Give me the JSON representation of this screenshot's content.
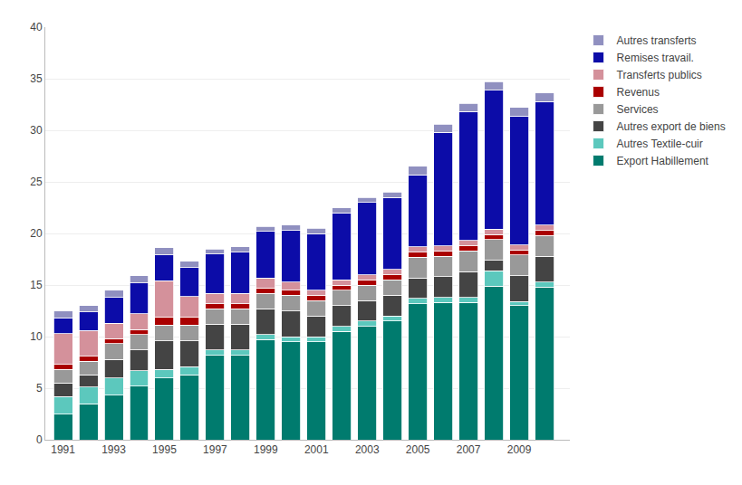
{
  "chart_data": {
    "type": "bar",
    "stacked": true,
    "x": [
      1991,
      1992,
      1993,
      1994,
      1995,
      1996,
      1997,
      1998,
      1999,
      2000,
      2001,
      2002,
      2003,
      2004,
      2005,
      2006,
      2007,
      2008,
      2009,
      2010
    ],
    "series": [
      {
        "name": "Export Habillement",
        "color": "#007B6E",
        "values": [
          2.5,
          3.5,
          4.3,
          5.2,
          6.0,
          6.3,
          8.2,
          8.2,
          9.7,
          9.5,
          9.5,
          10.5,
          11.0,
          11.5,
          13.2,
          13.3,
          13.3,
          14.9,
          13.0,
          14.8
        ]
      },
      {
        "name": "Autres Textile-cuir",
        "color": "#5CC8BD",
        "values": [
          1.7,
          1.6,
          1.7,
          1.5,
          0.8,
          0.8,
          0.5,
          0.5,
          0.5,
          0.5,
          0.5,
          0.5,
          0.5,
          0.5,
          0.5,
          0.5,
          0.5,
          1.5,
          0.4,
          0.5
        ]
      },
      {
        "name": "Autres export de biens",
        "color": "#444444",
        "values": [
          1.3,
          1.2,
          1.8,
          2.0,
          2.8,
          2.5,
          2.5,
          2.5,
          2.5,
          2.5,
          2.0,
          2.0,
          2.0,
          2.0,
          2.0,
          2.0,
          2.5,
          1.0,
          2.5,
          2.5
        ]
      },
      {
        "name": "Services",
        "color": "#999999",
        "values": [
          1.3,
          1.3,
          1.5,
          1.5,
          1.5,
          1.5,
          1.5,
          1.5,
          1.5,
          1.5,
          1.5,
          1.5,
          1.5,
          1.5,
          2.0,
          2.0,
          2.0,
          2.0,
          2.0,
          2.0
        ]
      },
      {
        "name": "Revenus",
        "color": "#AA0000",
        "values": [
          0.5,
          0.5,
          0.5,
          0.5,
          0.8,
          0.8,
          0.5,
          0.5,
          0.5,
          0.5,
          0.5,
          0.5,
          0.5,
          0.5,
          0.5,
          0.5,
          0.5,
          0.5,
          0.5,
          0.5
        ]
      },
      {
        "name": "Transferts publics",
        "color": "#D4919B",
        "values": [
          3.0,
          2.5,
          1.5,
          1.5,
          3.5,
          2.0,
          1.0,
          1.0,
          1.0,
          0.8,
          0.5,
          0.5,
          0.5,
          0.5,
          0.5,
          0.5,
          0.5,
          0.5,
          0.5,
          0.5
        ]
      },
      {
        "name": "Remises travail.",
        "color": "#0C0CA8",
        "values": [
          1.5,
          1.8,
          2.5,
          3.0,
          2.5,
          2.8,
          3.8,
          4.0,
          4.5,
          5.0,
          5.5,
          6.5,
          7.0,
          7.0,
          7.0,
          11.0,
          12.5,
          13.5,
          12.5,
          12.0
        ]
      },
      {
        "name": "Autres transferts",
        "color": "#9090C0",
        "values": [
          0.7,
          0.6,
          0.7,
          0.7,
          0.7,
          0.6,
          0.5,
          0.5,
          0.5,
          0.5,
          0.5,
          0.5,
          0.5,
          0.5,
          0.8,
          0.8,
          0.8,
          0.8,
          0.8,
          0.8
        ]
      }
    ],
    "xlim": [
      1990.3,
      2011
    ],
    "xticks": [
      1991,
      1993,
      1995,
      1997,
      1999,
      2001,
      2003,
      2005,
      2007,
      2009
    ],
    "ylim": [
      0,
      40
    ],
    "yticks": [
      0,
      5,
      10,
      15,
      20,
      25,
      30,
      35,
      40
    ],
    "grid": true,
    "legend": "right"
  }
}
